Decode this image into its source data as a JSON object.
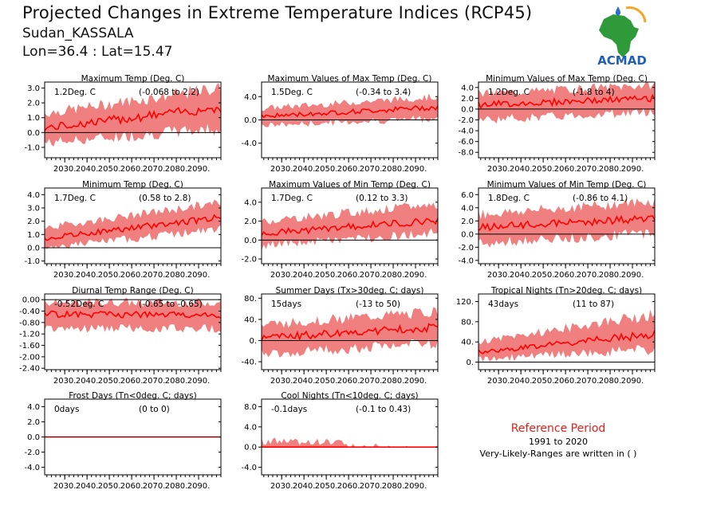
{
  "header": {
    "title": "Projected Changes in Extreme Temperature Indices (RCP45)",
    "location": "Sudan_KASSALA",
    "coords": "Lon=36.4 : Lat=15.47"
  },
  "logo": {
    "text": "ACMAD"
  },
  "reference": {
    "title": "Reference Period",
    "years": "1991 to 2020",
    "note": "Very-Likely-Ranges are written in ( )"
  },
  "colors": {
    "band": "#f08080",
    "line": "#ff0000",
    "zero": "#000000"
  },
  "chart_data": [
    {
      "type": "area",
      "title": "Maximum Temp (Deg. C)",
      "mean_label": "1.2Deg. C",
      "range_label": "(-0.068 to 2.2)",
      "x_ticks": [
        "2030.",
        "2040.",
        "2050.",
        "2060.",
        "2070.",
        "2080.",
        "2090."
      ],
      "y_ticks": [
        "-1.0",
        "0.0",
        "1.0",
        "2.0",
        "3.0"
      ],
      "ylim": [
        -1.7,
        3.4
      ],
      "x": [
        2021,
        2100
      ],
      "mean_start": 0.3,
      "mean_end": 1.7,
      "band_start": [
        -0.7,
        1.3
      ],
      "band_end": [
        0.3,
        3.0
      ]
    },
    {
      "type": "area",
      "title": "Maximum Values of Max Temp (Deg. C)",
      "mean_label": "1.5Deg. C",
      "range_label": "(-0.34 to 3.4)",
      "x_ticks": [
        "2030.",
        "2040.",
        "2050.",
        "2060.",
        "2070.",
        "2080.",
        "2090."
      ],
      "y_ticks": [
        "-4.0",
        "0.0",
        "4.0"
      ],
      "ylim": [
        -6.5,
        6.5
      ],
      "x": [
        2021,
        2100
      ],
      "mean_start": 0.6,
      "mean_end": 2.2,
      "band_start": [
        -1.0,
        2.0
      ],
      "band_end": [
        0.3,
        4.0
      ]
    },
    {
      "type": "area",
      "title": "Minimum Values of Max Temp (Deg. C)",
      "mean_label": "1.2Deg. C",
      "range_label": "(-1.8 to 4)",
      "x_ticks": [
        "2030.",
        "2040.",
        "2050.",
        "2060.",
        "2070.",
        "2080.",
        "2090."
      ],
      "y_ticks": [
        "-8.0",
        "-6.0",
        "-4.0",
        "-2.0",
        "0.0",
        "2.0",
        "4.0"
      ],
      "ylim": [
        -9,
        5
      ],
      "x": [
        2021,
        2100
      ],
      "mean_start": 0.8,
      "mean_end": 2.0,
      "band_start": [
        -2.0,
        2.8
      ],
      "band_end": [
        -0.5,
        4.5
      ]
    },
    {
      "type": "area",
      "title": "Minimum Temp (Deg. C)",
      "mean_label": "1.7Deg. C",
      "range_label": "(0.58 to 2.8)",
      "x_ticks": [
        "2030.",
        "2040.",
        "2050.",
        "2060.",
        "2070.",
        "2080.",
        "2090."
      ],
      "y_ticks": [
        "-1.0",
        "0.0",
        "1.0",
        "2.0",
        "3.0",
        "4.0"
      ],
      "ylim": [
        -1.2,
        4.5
      ],
      "x": [
        2021,
        2100
      ],
      "mean_start": 0.7,
      "mean_end": 2.3,
      "band_start": [
        0.0,
        1.5
      ],
      "band_end": [
        1.4,
        3.4
      ]
    },
    {
      "type": "area",
      "title": "Maximum Values of Min Temp (Deg. C)",
      "mean_label": "1.7Deg. C",
      "range_label": "(0.12 to 3.3)",
      "x_ticks": [
        "2030.",
        "2040.",
        "2050.",
        "2060.",
        "2070.",
        "2080.",
        "2090."
      ],
      "y_ticks": [
        "-2.0",
        "0.0",
        "2.0",
        "4.0"
      ],
      "ylim": [
        -2.5,
        5.5
      ],
      "x": [
        2021,
        2100
      ],
      "mean_start": 0.7,
      "mean_end": 2.1,
      "band_start": [
        -0.6,
        2.0
      ],
      "band_end": [
        0.8,
        3.8
      ]
    },
    {
      "type": "area",
      "title": "Minimum Values of Min Temp (Deg. C)",
      "mean_label": "1.8Deg. C",
      "range_label": "(-0.86 to 4.1)",
      "x_ticks": [
        "2030.",
        "2040.",
        "2050.",
        "2060.",
        "2070.",
        "2080.",
        "2090."
      ],
      "y_ticks": [
        "-4.0",
        "-2.0",
        "0.0",
        "2.0",
        "4.0",
        "6.0"
      ],
      "ylim": [
        -4.5,
        7.0
      ],
      "x": [
        2021,
        2100
      ],
      "mean_start": 1.0,
      "mean_end": 2.4,
      "band_start": [
        -1.5,
        3.0
      ],
      "band_end": [
        0.2,
        5.0
      ]
    },
    {
      "type": "area",
      "title": "Diurnal Temp Range (Deg. C)",
      "mean_label": "-0.52Deg. C",
      "range_label": "(-0.65 to -0.65)",
      "x_ticks": [
        "2030.",
        "2040.",
        "2050.",
        "2060.",
        "2070.",
        "2080.",
        "2090."
      ],
      "y_ticks": [
        "-2.40",
        "-2.00",
        "-1.60",
        "-1.20",
        "-0.80",
        "-0.40",
        "0.00"
      ],
      "ylim": [
        -2.45,
        0.2
      ],
      "x": [
        2021,
        2100
      ],
      "mean_start": -0.5,
      "mean_end": -0.55,
      "band_start": [
        -1.0,
        -0.1
      ],
      "band_end": [
        -1.0,
        -0.1
      ]
    },
    {
      "type": "area",
      "title": "Summer Days (Tx>30deg. C; days)",
      "mean_label": "15days",
      "range_label": "(-13 to 50)",
      "x_ticks": [
        "2030.",
        "2040.",
        "2050.",
        "2060.",
        "2070.",
        "2080.",
        "2090."
      ],
      "y_ticks": [
        "-40.",
        "0.",
        "40.",
        "80."
      ],
      "ylim": [
        -55,
        88
      ],
      "x": [
        2021,
        2100
      ],
      "mean_start": 5,
      "mean_end": 25,
      "band_start": [
        -25,
        30
      ],
      "band_end": [
        -5,
        55
      ]
    },
    {
      "type": "area",
      "title": "Tropical Nights (Tn>20deg. C; days)",
      "mean_label": "43days",
      "range_label": "(11 to 87)",
      "x_ticks": [
        "2030.",
        "2040.",
        "2050.",
        "2060.",
        "2070.",
        "2080.",
        "2090."
      ],
      "y_ticks": [
        "0.",
        "40.",
        "80.",
        "120."
      ],
      "ylim": [
        -15,
        135
      ],
      "x": [
        2021,
        2100
      ],
      "mean_start": 20,
      "mean_end": 55,
      "band_start": [
        5,
        40
      ],
      "band_end": [
        25,
        95
      ]
    },
    {
      "type": "area",
      "title": "Frost Days (Tn<0deg. C; days)",
      "mean_label": "0days",
      "range_label": "(0 to 0)",
      "x_ticks": [
        "2030.",
        "2040.",
        "2050.",
        "2060.",
        "2070.",
        "2080.",
        "2090."
      ],
      "y_ticks": [
        "-4.0",
        "-2.0",
        "0.0",
        "2.0",
        "4.0"
      ],
      "ylim": [
        -5,
        5
      ],
      "x": [
        2021,
        2100
      ],
      "mean_start": 0,
      "mean_end": 0,
      "band_start": [
        0,
        0
      ],
      "band_end": [
        0,
        0
      ]
    },
    {
      "type": "area",
      "title": "Cool Nights (Tn<10deg. C; days)",
      "mean_label": "-0.1days",
      "range_label": "(-0.1 to 0.43)",
      "x_ticks": [
        "2030.",
        "2040.",
        "2050.",
        "2060.",
        "2070.",
        "2080.",
        "2090."
      ],
      "y_ticks": [
        "-4.0",
        "0.0",
        "4.0",
        "8.0"
      ],
      "ylim": [
        -5.5,
        9.5
      ],
      "x": [
        2021,
        2100
      ],
      "mean_start": 0,
      "mean_end": 0,
      "band_start": [
        0,
        1.2
      ],
      "band_end": [
        0,
        0.6
      ]
    }
  ]
}
